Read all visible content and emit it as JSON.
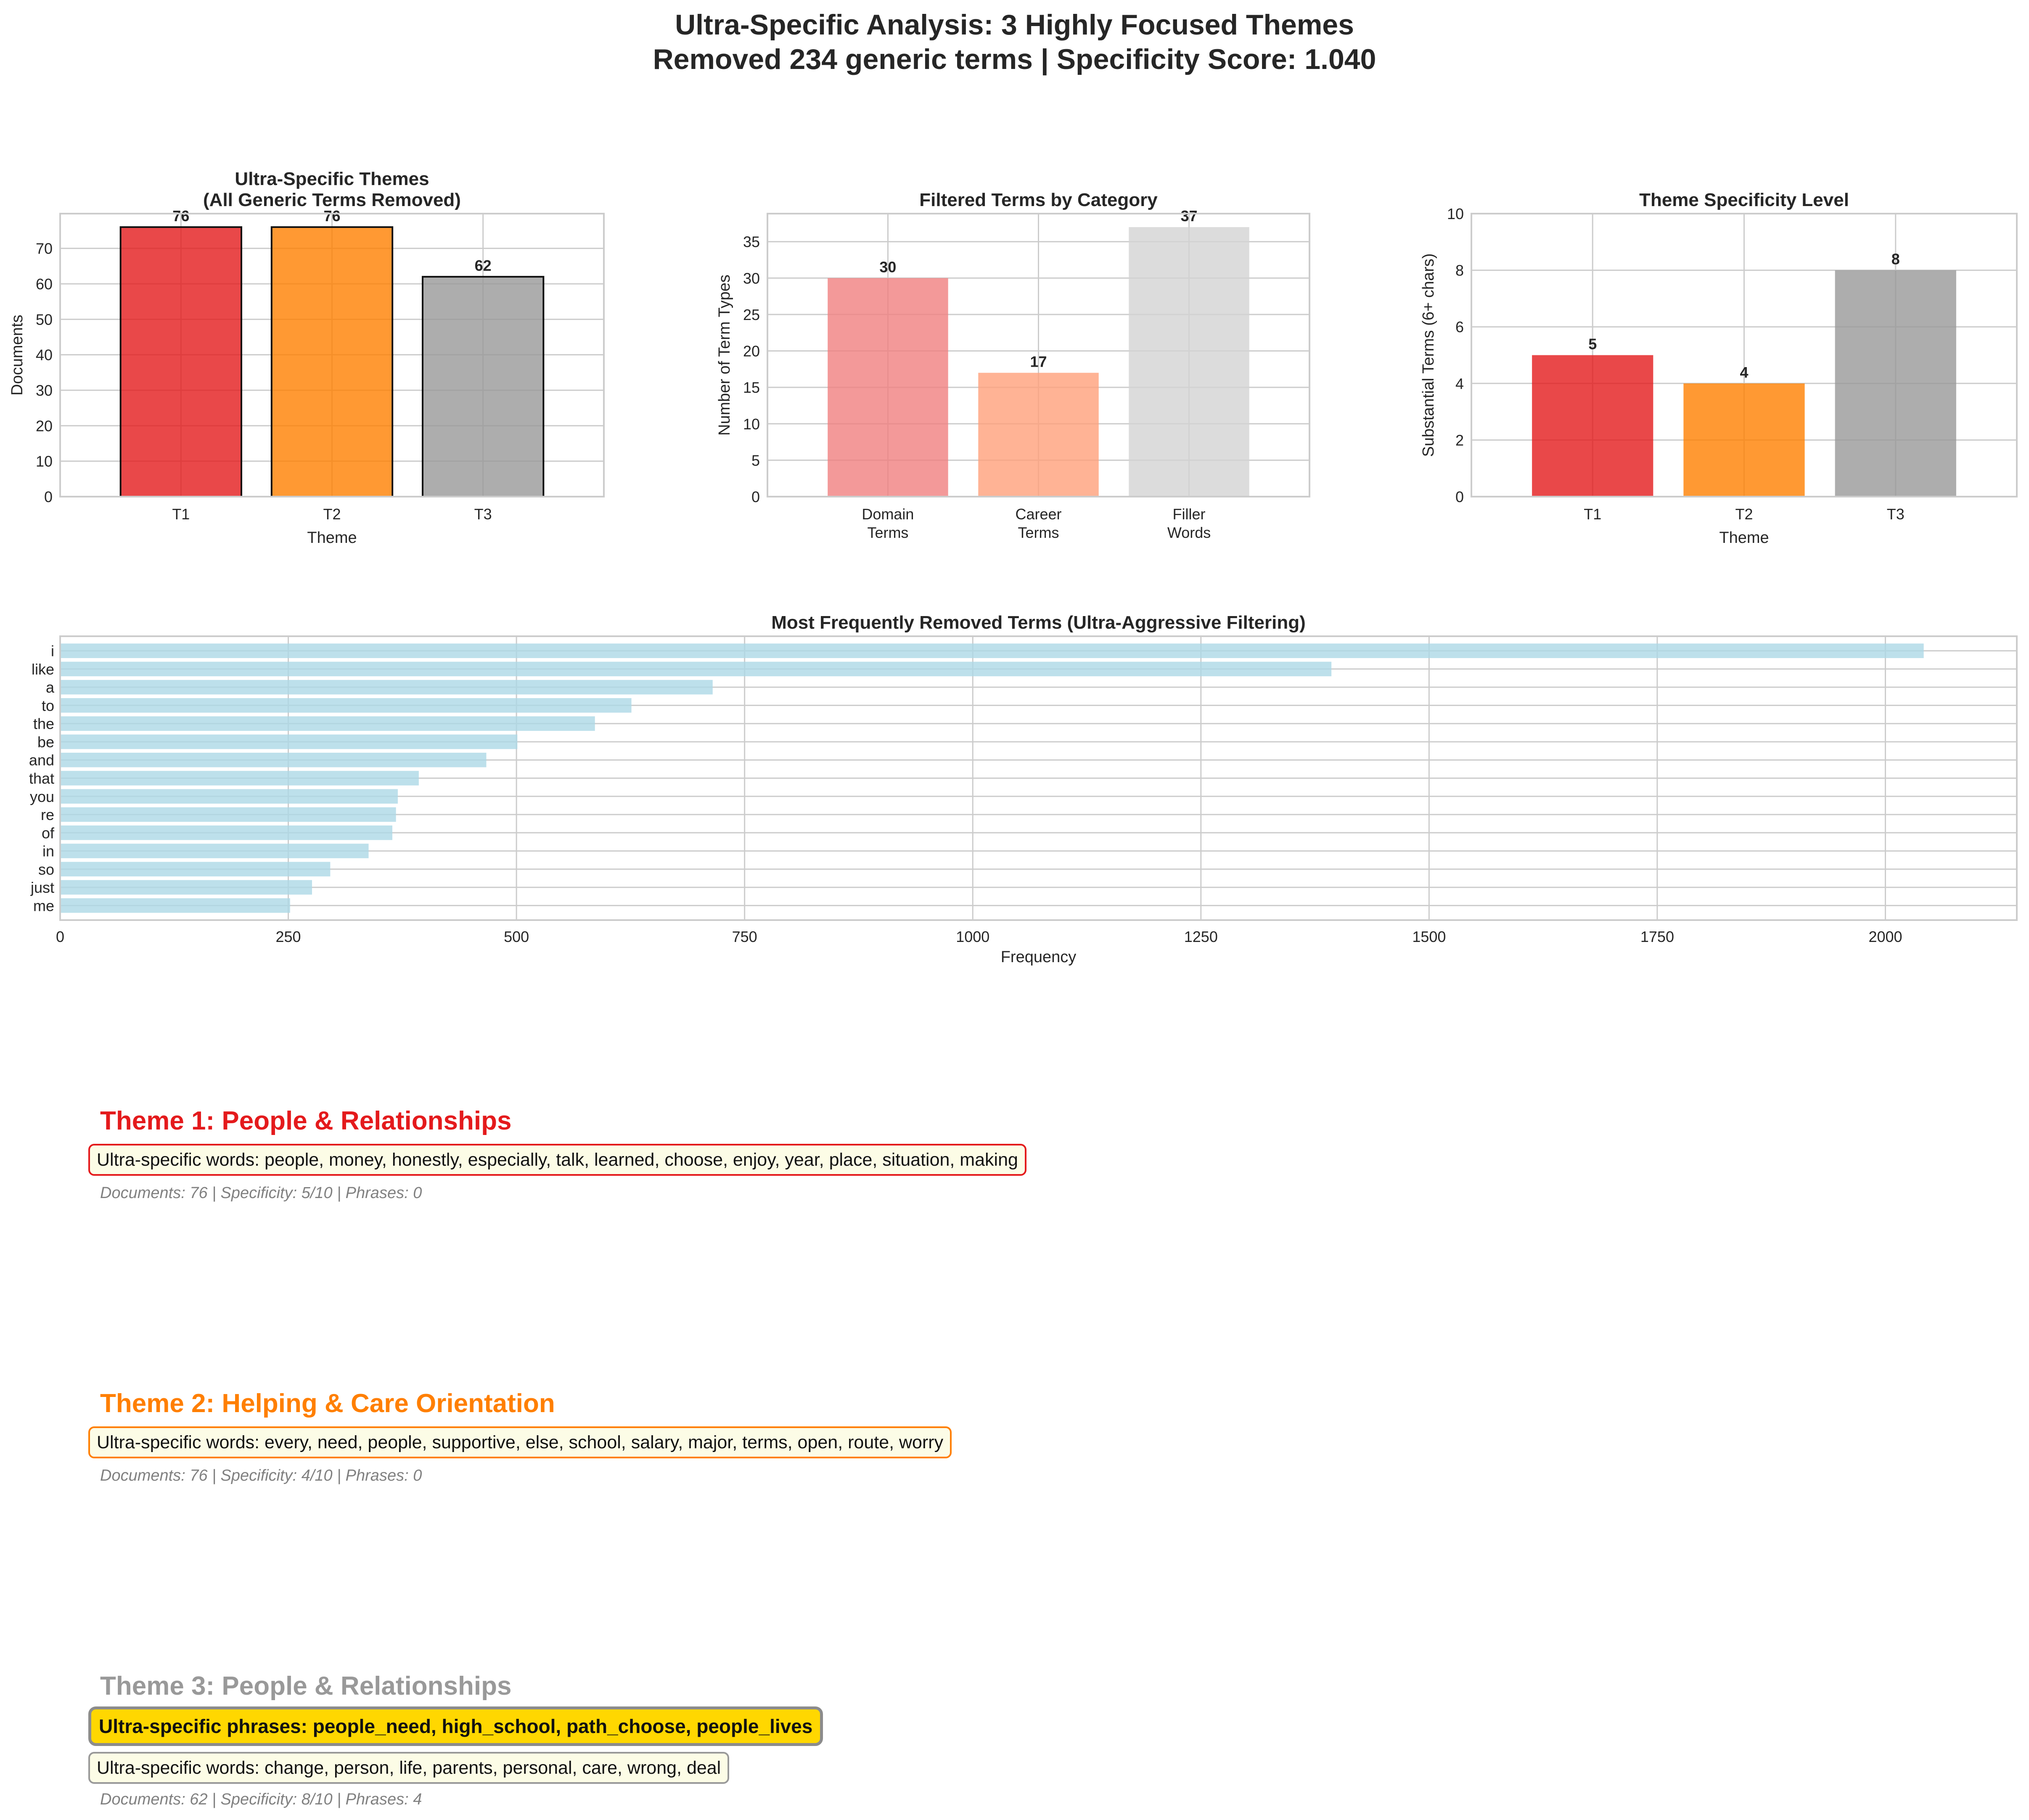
{
  "page": {
    "title_line1": "Ultra-Specific Analysis: 3 Highly Focused Themes",
    "title_line2": "Removed 234 generic terms | Specificity Score: 1.040"
  },
  "chart_data": [
    {
      "type": "bar",
      "title": "Ultra-Specific Themes\n(All Generic Terms Removed)",
      "categories": [
        "T1",
        "T2",
        "T3"
      ],
      "values": [
        76,
        76,
        62
      ],
      "colors": [
        "#e41a1c",
        "#ff7f00",
        "#999999"
      ],
      "xlabel": "Theme",
      "ylabel": "Documents",
      "ylim": [
        0,
        79.8
      ],
      "yticks": [
        0,
        10,
        20,
        30,
        40,
        50,
        60,
        70
      ],
      "edge": true
    },
    {
      "type": "bar",
      "title": "Filtered Terms by Category",
      "categories": [
        "Domain\nTerms",
        "Career\nTerms",
        "Filler\nWords"
      ],
      "values": [
        30,
        17,
        37
      ],
      "colors": [
        "#f08080",
        "#ffa07a",
        "#d3d3d3"
      ],
      "xlabel": "",
      "ylabel": "Number of Term Types",
      "ylim": [
        0,
        38.85
      ],
      "yticks": [
        0,
        5,
        10,
        15,
        20,
        25,
        30,
        35
      ],
      "edge": false
    },
    {
      "type": "bar",
      "title": "Theme Specificity Level",
      "categories": [
        "T1",
        "T2",
        "T3"
      ],
      "values": [
        5,
        4,
        8
      ],
      "colors": [
        "#e41a1c",
        "#ff7f00",
        "#999999"
      ],
      "xlabel": "Theme",
      "ylabel": "Substantial Terms (6+ chars)",
      "ylim": [
        0,
        10
      ],
      "yticks": [
        0,
        2,
        4,
        6,
        8,
        10
      ],
      "edge": false
    },
    {
      "type": "bar",
      "orientation": "horizontal",
      "title": "Most Frequently Removed Terms (Ultra-Aggressive Filtering)",
      "categories": [
        "i",
        "like",
        "a",
        "to",
        "the",
        "be",
        "and",
        "that",
        "you",
        "re",
        "of",
        "in",
        "so",
        "just",
        "me"
      ],
      "values": [
        2042,
        1393,
        715,
        626,
        586,
        501,
        467,
        393,
        370,
        368,
        364,
        338,
        296,
        276,
        252
      ],
      "colors": [
        "#add8e6"
      ],
      "xlabel": "Frequency",
      "ylabel": "",
      "xlim": [
        0,
        2144
      ],
      "xticks": [
        0,
        250,
        500,
        750,
        1000,
        1250,
        1500,
        1750,
        2000
      ]
    }
  ],
  "themes": [
    {
      "title": "Theme 1: People & Relationships",
      "color": "#e41a1c",
      "words": "Ultra-specific words: people, money, honestly, especially, talk, learned, choose, enjoy, year, place, situation, making",
      "meta": "Documents: 76 | Specificity: 5/10 | Phrases: 0"
    },
    {
      "title": "Theme 2: Helping & Care Orientation",
      "color": "#ff7f00",
      "words": "Ultra-specific words: every, need, people, supportive, else, school, salary, major, terms, open, route, worry",
      "meta": "Documents: 76 | Specificity: 4/10 | Phrases: 0"
    },
    {
      "title": "Theme 3: People & Relationships",
      "color": "#999999",
      "phrases": "Ultra-specific phrases: people_need, high_school, path_choose, people_lives",
      "words": "Ultra-specific words: change, person, life, parents, personal, care, wrong, deal",
      "meta": "Documents: 62 | Specificity: 8/10 | Phrases: 4"
    }
  ]
}
